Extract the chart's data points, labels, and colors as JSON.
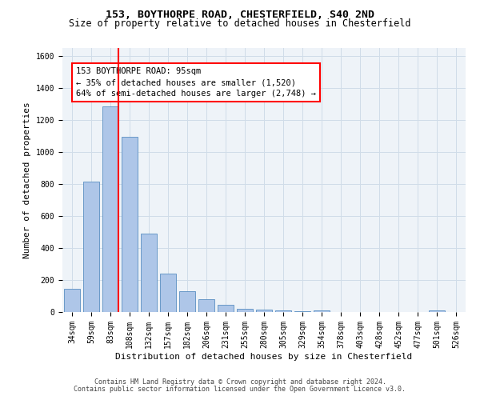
{
  "title_line1": "153, BOYTHORPE ROAD, CHESTERFIELD, S40 2ND",
  "title_line2": "Size of property relative to detached houses in Chesterfield",
  "xlabel": "Distribution of detached houses by size in Chesterfield",
  "ylabel": "Number of detached properties",
  "categories": [
    "34sqm",
    "59sqm",
    "83sqm",
    "108sqm",
    "132sqm",
    "157sqm",
    "182sqm",
    "206sqm",
    "231sqm",
    "255sqm",
    "280sqm",
    "305sqm",
    "329sqm",
    "354sqm",
    "378sqm",
    "403sqm",
    "428sqm",
    "452sqm",
    "477sqm",
    "501sqm",
    "526sqm"
  ],
  "values": [
    145,
    815,
    1285,
    1095,
    490,
    240,
    130,
    80,
    45,
    22,
    15,
    8,
    5,
    8,
    2,
    0,
    0,
    0,
    0,
    10,
    0
  ],
  "bar_color": "#aec6e8",
  "bar_edge_color": "#5a8fc2",
  "red_line_index": 2,
  "annotation_text": "153 BOYTHORPE ROAD: 95sqm\n← 35% of detached houses are smaller (1,520)\n64% of semi-detached houses are larger (2,748) →",
  "annotation_box_color": "white",
  "annotation_box_edge_color": "red",
  "red_line_color": "red",
  "ylim": [
    0,
    1650
  ],
  "yticks": [
    0,
    200,
    400,
    600,
    800,
    1000,
    1200,
    1400,
    1600
  ],
  "grid_color": "#d0dce8",
  "background_color": "#eef3f8",
  "footer_line1": "Contains HM Land Registry data © Crown copyright and database right 2024.",
  "footer_line2": "Contains public sector information licensed under the Open Government Licence v3.0.",
  "title_fontsize": 9.5,
  "subtitle_fontsize": 8.5,
  "tick_fontsize": 7,
  "ylabel_fontsize": 8,
  "xlabel_fontsize": 8,
  "annotation_fontsize": 7.5,
  "footer_fontsize": 6
}
